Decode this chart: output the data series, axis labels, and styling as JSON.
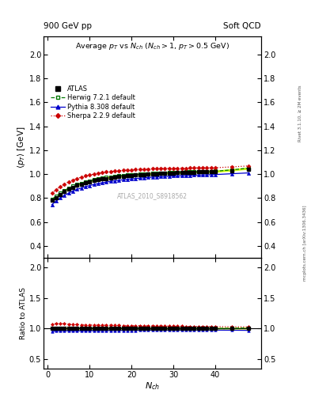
{
  "title_left": "900 GeV pp",
  "title_right": "Soft QCD",
  "plot_title": "Average $p_T$ vs $N_{ch}$ ($N_{ch} > 1$, $p_T > 0.5$ GeV)",
  "ylabel_main": "$\\langle p_T \\rangle$ [GeV]",
  "ylabel_ratio": "Ratio to ATLAS",
  "xlabel": "$N_{ch}$",
  "watermark": "ATLAS_2010_S8918562",
  "rivet_label": "Rivet 3.1.10, ≥ 2M events",
  "mcplots_label": "mcplots.cern.ch [arXiv:1306.3436]",
  "ylim_main": [
    0.3,
    2.15
  ],
  "ylim_ratio": [
    0.35,
    2.15
  ],
  "yticks_main": [
    0.4,
    0.6,
    0.8,
    1.0,
    1.2,
    1.4,
    1.6,
    1.8,
    2.0
  ],
  "yticks_ratio": [
    0.5,
    1.0,
    1.5,
    2.0
  ],
  "xlim": [
    -1,
    51
  ],
  "xticks": [
    0,
    10,
    20,
    30,
    40
  ],
  "atlas_x": [
    1,
    2,
    3,
    4,
    5,
    6,
    7,
    8,
    9,
    10,
    11,
    12,
    13,
    14,
    15,
    16,
    17,
    18,
    19,
    20,
    21,
    22,
    23,
    24,
    25,
    26,
    27,
    28,
    29,
    30,
    31,
    32,
    33,
    34,
    35,
    36,
    37,
    38,
    39,
    40,
    44,
    48
  ],
  "atlas_y": [
    0.785,
    0.805,
    0.828,
    0.852,
    0.872,
    0.89,
    0.905,
    0.917,
    0.928,
    0.937,
    0.945,
    0.952,
    0.958,
    0.964,
    0.969,
    0.974,
    0.978,
    0.982,
    0.985,
    0.988,
    0.991,
    0.993,
    0.996,
    0.998,
    1.0,
    1.002,
    1.004,
    1.006,
    1.008,
    1.009,
    1.011,
    1.012,
    1.014,
    1.015,
    1.016,
    1.017,
    1.018,
    1.019,
    1.02,
    1.021,
    1.03,
    1.04
  ],
  "atlas_yerr": [
    0.01,
    0.01,
    0.01,
    0.01,
    0.01,
    0.01,
    0.01,
    0.01,
    0.01,
    0.01,
    0.01,
    0.01,
    0.01,
    0.01,
    0.01,
    0.01,
    0.01,
    0.01,
    0.01,
    0.01,
    0.01,
    0.01,
    0.01,
    0.01,
    0.01,
    0.01,
    0.01,
    0.01,
    0.01,
    0.01,
    0.01,
    0.01,
    0.01,
    0.01,
    0.01,
    0.01,
    0.01,
    0.01,
    0.01,
    0.01,
    0.01,
    0.01
  ],
  "herwig_x": [
    1,
    2,
    3,
    4,
    5,
    6,
    7,
    8,
    9,
    10,
    11,
    12,
    13,
    14,
    15,
    16,
    17,
    18,
    19,
    20,
    21,
    22,
    23,
    24,
    25,
    26,
    27,
    28,
    29,
    30,
    31,
    32,
    33,
    34,
    35,
    36,
    37,
    38,
    39,
    40,
    44,
    48
  ],
  "herwig_y": [
    0.79,
    0.815,
    0.84,
    0.862,
    0.882,
    0.898,
    0.912,
    0.924,
    0.935,
    0.944,
    0.952,
    0.959,
    0.965,
    0.971,
    0.976,
    0.98,
    0.984,
    0.988,
    0.991,
    0.994,
    0.997,
    0.999,
    1.001,
    1.003,
    1.005,
    1.007,
    1.009,
    1.01,
    1.012,
    1.013,
    1.014,
    1.016,
    1.017,
    1.018,
    1.019,
    1.02,
    1.021,
    1.022,
    1.023,
    1.024,
    1.035,
    1.05
  ],
  "herwig_band": 0.005,
  "pythia_x": [
    1,
    2,
    3,
    4,
    5,
    6,
    7,
    8,
    9,
    10,
    11,
    12,
    13,
    14,
    15,
    16,
    17,
    18,
    19,
    20,
    21,
    22,
    23,
    24,
    25,
    26,
    27,
    28,
    29,
    30,
    31,
    32,
    33,
    34,
    35,
    36,
    37,
    38,
    39,
    40,
    44,
    48
  ],
  "pythia_y": [
    0.745,
    0.775,
    0.8,
    0.822,
    0.841,
    0.858,
    0.872,
    0.884,
    0.895,
    0.904,
    0.913,
    0.92,
    0.927,
    0.933,
    0.939,
    0.944,
    0.948,
    0.953,
    0.957,
    0.96,
    0.963,
    0.966,
    0.969,
    0.972,
    0.974,
    0.976,
    0.978,
    0.98,
    0.982,
    0.984,
    0.985,
    0.987,
    0.988,
    0.99,
    0.991,
    0.992,
    0.993,
    0.994,
    0.995,
    0.996,
    1.003,
    1.01
  ],
  "sherpa_x": [
    1,
    2,
    3,
    4,
    5,
    6,
    7,
    8,
    9,
    10,
    11,
    12,
    13,
    14,
    15,
    16,
    17,
    18,
    19,
    20,
    21,
    22,
    23,
    24,
    25,
    26,
    27,
    28,
    29,
    30,
    31,
    32,
    33,
    34,
    35,
    36,
    37,
    38,
    39,
    40,
    44,
    48
  ],
  "sherpa_y": [
    0.84,
    0.87,
    0.895,
    0.917,
    0.935,
    0.95,
    0.963,
    0.974,
    0.984,
    0.992,
    1.0,
    1.006,
    1.012,
    1.017,
    1.021,
    1.025,
    1.028,
    1.031,
    1.034,
    1.036,
    1.038,
    1.04,
    1.041,
    1.043,
    1.044,
    1.045,
    1.046,
    1.047,
    1.048,
    1.048,
    1.049,
    1.05,
    1.05,
    1.051,
    1.051,
    1.052,
    1.052,
    1.052,
    1.053,
    1.053,
    1.06,
    1.068
  ],
  "atlas_color": "#000000",
  "herwig_color": "#007700",
  "pythia_color": "#0000cc",
  "sherpa_color": "#cc0000",
  "herwig_band_color": "#ccff00",
  "atlas_band_color": "#ffff99",
  "bg_color": "#ffffff"
}
